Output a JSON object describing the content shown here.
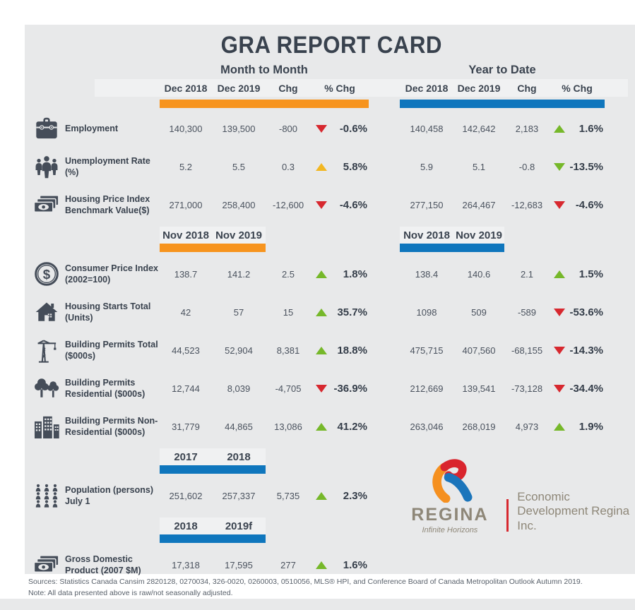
{
  "title": "GRA REPORT CARD",
  "colors": {
    "orange": "#f7941e",
    "blue": "#0f76bd",
    "red": "#d7282f",
    "green": "#76b82a",
    "yellow": "#f2b722",
    "panel_gray": "#e8e9ea",
    "text_dark": "#39424e",
    "logo_taupe": "#8e8778"
  },
  "sections": {
    "month_to_month": {
      "title": "Month to Month",
      "columns": [
        "Dec 2018",
        "Dec 2019",
        "Chg",
        "% Chg"
      ]
    },
    "year_to_date": {
      "title": "Year to Date",
      "columns": [
        "Dec 2018",
        "Dec 2019",
        "Chg",
        "% Chg"
      ]
    }
  },
  "subheaders": {
    "nov": {
      "left": [
        "Nov 2018",
        "Nov 2019"
      ],
      "right": [
        "Nov 2018",
        "Nov 2019"
      ]
    },
    "population": {
      "left": [
        "2017",
        "2018"
      ]
    },
    "gdp": {
      "left": [
        "2018",
        "2019f"
      ]
    }
  },
  "rows": [
    {
      "group": "a",
      "icon": "briefcase-icon",
      "label": "Employment",
      "left": {
        "v1": "140,300",
        "v2": "139,500",
        "chg": "-800",
        "pct": "-0.6%",
        "trend": {
          "dir": "down",
          "color": "red"
        }
      },
      "right": {
        "v1": "140,458",
        "v2": "142,642",
        "chg": "2,183",
        "pct": "1.6%",
        "trend": {
          "dir": "up",
          "color": "green"
        }
      }
    },
    {
      "group": "a",
      "icon": "people-icon",
      "label": "Unemployment Rate (%)",
      "left": {
        "v1": "5.2",
        "v2": "5.5",
        "chg": "0.3",
        "pct": "5.8%",
        "trend": {
          "dir": "up",
          "color": "yellow"
        }
      },
      "right": {
        "v1": "5.9",
        "v2": "5.1",
        "chg": "-0.8",
        "pct": "-13.5%",
        "trend": {
          "dir": "down",
          "color": "green"
        }
      }
    },
    {
      "group": "a",
      "icon": "money-icon",
      "label": "Housing Price Index Benchmark Value($)",
      "left": {
        "v1": "271,000",
        "v2": "258,400",
        "chg": "-12,600",
        "pct": "-4.6%",
        "trend": {
          "dir": "down",
          "color": "red"
        }
      },
      "right": {
        "v1": "277,150",
        "v2": "264,467",
        "chg": "-12,683",
        "pct": "-4.6%",
        "trend": {
          "dir": "down",
          "color": "red"
        }
      }
    },
    {
      "group": "b",
      "icon": "dollar-circle-icon",
      "label": "Consumer Price Index (2002=100)",
      "left": {
        "v1": "138.7",
        "v2": "141.2",
        "chg": "2.5",
        "pct": "1.8%",
        "trend": {
          "dir": "up",
          "color": "green"
        }
      },
      "right": {
        "v1": "138.4",
        "v2": "140.6",
        "chg": "2.1",
        "pct": "1.5%",
        "trend": {
          "dir": "up",
          "color": "green"
        }
      }
    },
    {
      "group": "b",
      "icon": "house-icon",
      "label": "Housing Starts Total (Units)",
      "left": {
        "v1": "42",
        "v2": "57",
        "chg": "15",
        "pct": "35.7%",
        "trend": {
          "dir": "up",
          "color": "green"
        }
      },
      "right": {
        "v1": "1098",
        "v2": "509",
        "chg": "-589",
        "pct": "-53.6%",
        "trend": {
          "dir": "down",
          "color": "red"
        }
      }
    },
    {
      "group": "b",
      "icon": "crane-icon",
      "label": "Building Permits Total ($000s)",
      "left": {
        "v1": "44,523",
        "v2": "52,904",
        "chg": "8,381",
        "pct": "18.8%",
        "trend": {
          "dir": "up",
          "color": "green"
        }
      },
      "right": {
        "v1": "475,715",
        "v2": "407,560",
        "chg": "-68,155",
        "pct": "-14.3%",
        "trend": {
          "dir": "down",
          "color": "red"
        }
      }
    },
    {
      "group": "b",
      "icon": "trees-icon",
      "label": "Building Permits Residential ($000s)",
      "left": {
        "v1": "12,744",
        "v2": "8,039",
        "chg": "-4,705",
        "pct": "-36.9%",
        "trend": {
          "dir": "down",
          "color": "red"
        }
      },
      "right": {
        "v1": "212,669",
        "v2": "139,541",
        "chg": "-73,128",
        "pct": "-34.4%",
        "trend": {
          "dir": "down",
          "color": "red"
        }
      }
    },
    {
      "group": "b",
      "icon": "buildings-icon",
      "label": "Building Permits Non-Residential ($000s)",
      "left": {
        "v1": "31,779",
        "v2": "44,865",
        "chg": "13,086",
        "pct": "41.2%",
        "trend": {
          "dir": "up",
          "color": "green"
        }
      },
      "right": {
        "v1": "263,046",
        "v2": "268,019",
        "chg": "4,973",
        "pct": "1.9%",
        "trend": {
          "dir": "up",
          "color": "green"
        }
      }
    },
    {
      "group": "c",
      "icon": "crowd-icon",
      "label": "Population (persons) July 1",
      "left": {
        "v1": "251,602",
        "v2": "257,337",
        "chg": "5,735",
        "pct": "2.3%",
        "trend": {
          "dir": "up",
          "color": "green"
        }
      },
      "right": null
    },
    {
      "group": "d",
      "icon": "money-icon",
      "label": "Gross Domestic Product (2007 $M)",
      "left": {
        "v1": "17,318",
        "v2": "17,595",
        "chg": "277",
        "pct": "1.6%",
        "trend": {
          "dir": "up",
          "color": "green"
        }
      },
      "right": null
    }
  ],
  "logo": {
    "name": "REGINA",
    "tagline": "Infinite Horizons",
    "org_line1": "Economic",
    "org_line2": "Development Regina Inc."
  },
  "footer": {
    "sources": "Sources: Statistics Canada Cansim 2820128, 0270034, 326-0020, 0260003, 0510056, MLS® HPI, and Conference Board of Canada Metropolitan Outlook Autumn 2019.",
    "note": "Note: All data presented above is raw/not seasonally adjusted."
  }
}
